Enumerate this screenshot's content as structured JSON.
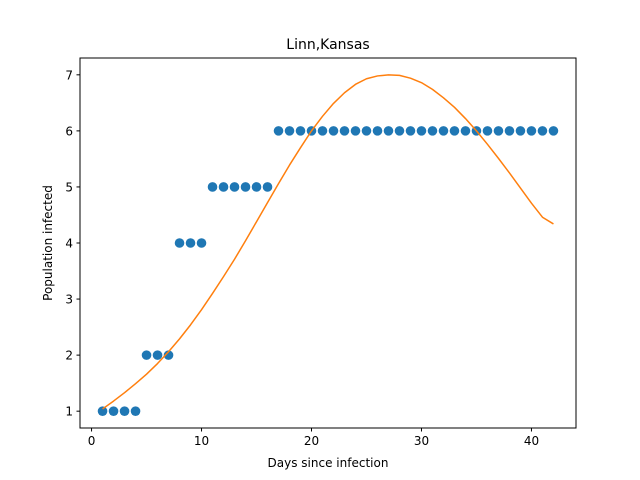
{
  "chart_data": {
    "type": "scatter",
    "title": "Linn,Kansas",
    "xlabel": "Days since infection",
    "ylabel": "Population infected",
    "xlim": [
      -1.05,
      44.05
    ],
    "ylim": [
      0.7,
      7.3
    ],
    "xticks": [
      0,
      10,
      20,
      30,
      40
    ],
    "yticks": [
      1,
      2,
      3,
      4,
      5,
      6,
      7
    ],
    "grid": false,
    "series": [
      {
        "kind": "scatter",
        "color": "#1f77b4",
        "x": [
          1,
          2,
          3,
          4,
          5,
          6,
          7,
          8,
          9,
          10,
          11,
          12,
          13,
          14,
          15,
          16,
          17,
          18,
          19,
          20,
          21,
          22,
          23,
          24,
          25,
          26,
          27,
          28,
          29,
          30,
          31,
          32,
          33,
          34,
          35,
          36,
          37,
          38,
          39,
          40,
          41,
          42
        ],
        "y": [
          1,
          1,
          1,
          1,
          2,
          2,
          2,
          4,
          4,
          4,
          5,
          5,
          5,
          5,
          5,
          5,
          6,
          6,
          6,
          6,
          6,
          6,
          6,
          6,
          6,
          6,
          6,
          6,
          6,
          6,
          6,
          6,
          6,
          6,
          6,
          6,
          6,
          6,
          6,
          6,
          6,
          6
        ]
      },
      {
        "kind": "line",
        "color": "#ff7f0e",
        "x": [
          1,
          2,
          3,
          4,
          5,
          6,
          7,
          8,
          9,
          10,
          11,
          12,
          13,
          14,
          15,
          16,
          17,
          18,
          19,
          20,
          21,
          22,
          23,
          24,
          25,
          26,
          27,
          28,
          29,
          30,
          31,
          32,
          33,
          34,
          35,
          36,
          37,
          38,
          39,
          40,
          41,
          42
        ],
        "y": [
          1.04,
          1.18,
          1.33,
          1.49,
          1.66,
          1.85,
          2.06,
          2.29,
          2.54,
          2.81,
          3.1,
          3.4,
          3.71,
          4.04,
          4.38,
          4.72,
          5.06,
          5.39,
          5.7,
          6.0,
          6.26,
          6.49,
          6.68,
          6.83,
          6.93,
          6.98,
          7.0,
          6.99,
          6.94,
          6.86,
          6.74,
          6.59,
          6.42,
          6.22,
          6.0,
          5.76,
          5.51,
          5.25,
          4.98,
          4.71,
          4.46,
          4.34
        ]
      }
    ]
  }
}
